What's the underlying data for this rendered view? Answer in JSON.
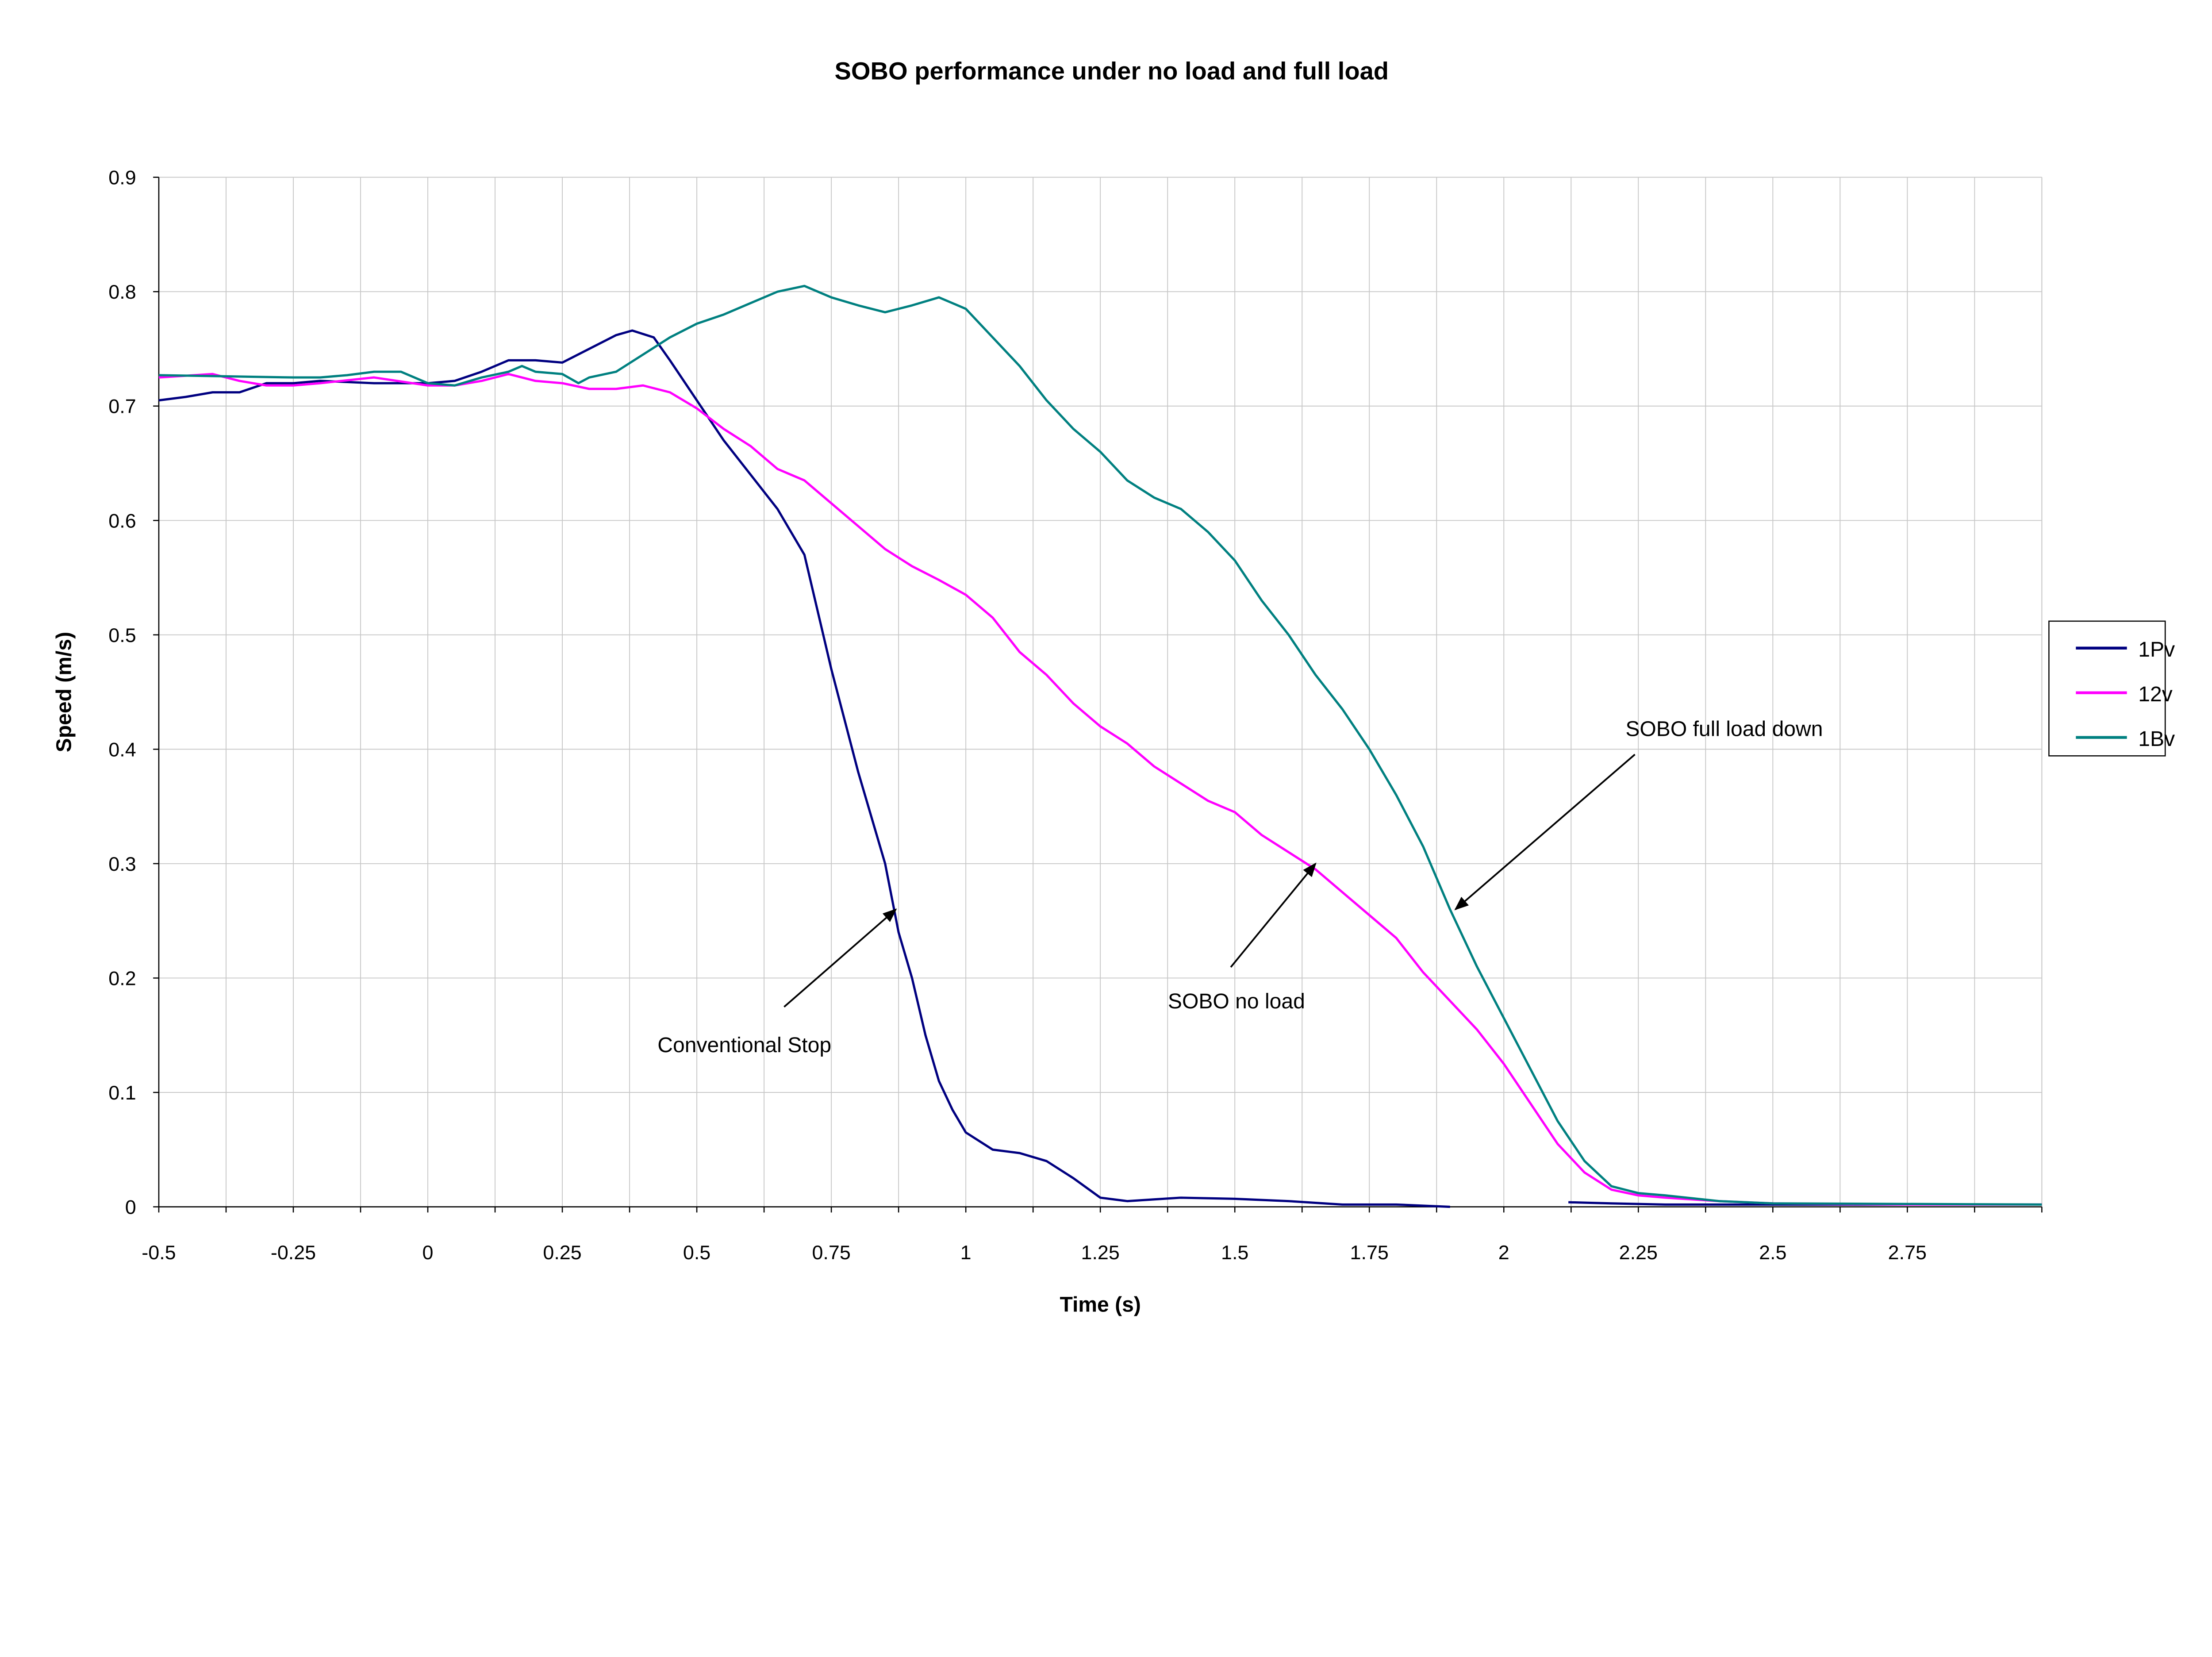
{
  "chart_data": {
    "type": "line",
    "title": "SOBO performance under no load and full load",
    "xlabel": "Time (s)",
    "ylabel": "Speed (m/s)",
    "xlim": [
      -0.5,
      3.0
    ],
    "ylim": [
      0,
      0.9
    ],
    "x_ticks": [
      "-0.5",
      "-0.25",
      "0",
      "0.25",
      "0.5",
      "0.75",
      "1",
      "1.25",
      "1.5",
      "1.75",
      "2",
      "2.25",
      "2.5",
      "2.75"
    ],
    "y_ticks": [
      "0",
      "0.1",
      "0.2",
      "0.3",
      "0.4",
      "0.5",
      "0.6",
      "0.7",
      "0.8",
      "0.9"
    ],
    "grid": true,
    "legend_position": "right",
    "series": [
      {
        "name": "1Pv",
        "color": "#000080",
        "x": [
          -0.5,
          -0.45,
          -0.4,
          -0.35,
          -0.3,
          -0.25,
          -0.2,
          -0.1,
          0,
          0.05,
          0.1,
          0.15,
          0.2,
          0.25,
          0.3,
          0.35,
          0.38,
          0.42,
          0.45,
          0.5,
          0.55,
          0.6,
          0.65,
          0.7,
          0.73,
          0.75,
          0.8,
          0.85,
          0.875,
          0.9,
          0.925,
          0.95,
          0.975,
          1.0,
          1.05,
          1.1,
          1.15,
          1.2,
          1.25,
          1.3,
          1.4,
          1.5,
          1.6,
          1.7,
          1.8,
          1.9,
          null,
          2.12,
          2.2,
          2.3,
          2.5,
          2.75,
          3.0
        ],
        "y": [
          0.705,
          0.708,
          0.712,
          0.712,
          0.72,
          0.72,
          0.722,
          0.72,
          0.72,
          0.722,
          0.73,
          0.74,
          0.74,
          0.738,
          0.75,
          0.762,
          0.766,
          0.76,
          0.74,
          0.705,
          0.67,
          0.64,
          0.61,
          0.57,
          0.51,
          0.47,
          0.38,
          0.3,
          0.24,
          0.2,
          0.15,
          0.11,
          0.085,
          0.065,
          0.05,
          0.047,
          0.04,
          0.025,
          0.008,
          0.005,
          0.008,
          0.007,
          0.005,
          0.002,
          0.002,
          0.0,
          null,
          0.004,
          0.003,
          0.002,
          0.002,
          0.002,
          0.002
        ]
      },
      {
        "name": "12v",
        "color": "#FF00FF",
        "x": [
          -0.5,
          -0.4,
          -0.35,
          -0.3,
          -0.25,
          -0.2,
          -0.1,
          0,
          0.05,
          0.1,
          0.15,
          0.2,
          0.25,
          0.3,
          0.35,
          0.4,
          0.45,
          0.5,
          0.55,
          0.6,
          0.65,
          0.7,
          0.75,
          0.8,
          0.85,
          0.9,
          0.95,
          1.0,
          1.05,
          1.1,
          1.15,
          1.2,
          1.25,
          1.3,
          1.35,
          1.4,
          1.45,
          1.5,
          1.55,
          1.6,
          1.65,
          1.7,
          1.75,
          1.8,
          1.85,
          1.9,
          1.95,
          2.0,
          2.05,
          2.1,
          2.15,
          2.2,
          2.25,
          2.3,
          2.4,
          2.5,
          2.75,
          3.0
        ],
        "y": [
          0.725,
          0.728,
          0.722,
          0.718,
          0.718,
          0.72,
          0.725,
          0.718,
          0.718,
          0.722,
          0.728,
          0.722,
          0.72,
          0.715,
          0.715,
          0.718,
          0.712,
          0.698,
          0.68,
          0.665,
          0.645,
          0.635,
          0.615,
          0.595,
          0.575,
          0.56,
          0.548,
          0.535,
          0.515,
          0.485,
          0.465,
          0.44,
          0.42,
          0.405,
          0.385,
          0.37,
          0.355,
          0.345,
          0.325,
          0.31,
          0.295,
          0.275,
          0.255,
          0.235,
          0.205,
          0.18,
          0.155,
          0.125,
          0.09,
          0.055,
          0.03,
          0.015,
          0.01,
          0.008,
          0.005,
          0.003,
          0.002,
          0.002
        ]
      },
      {
        "name": "1Bv",
        "color": "#008080",
        "x": [
          -0.5,
          -0.25,
          -0.2,
          -0.15,
          -0.1,
          -0.05,
          0,
          0.05,
          0.1,
          0.15,
          0.175,
          0.2,
          0.25,
          0.28,
          0.3,
          0.35,
          0.4,
          0.45,
          0.5,
          0.55,
          0.6,
          0.65,
          0.7,
          0.75,
          0.8,
          0.85,
          0.9,
          0.95,
          1.0,
          1.05,
          1.1,
          1.15,
          1.2,
          1.25,
          1.3,
          1.35,
          1.4,
          1.45,
          1.5,
          1.55,
          1.6,
          1.65,
          1.7,
          1.75,
          1.8,
          1.85,
          1.9,
          1.95,
          2.0,
          2.05,
          2.1,
          2.15,
          2.2,
          2.25,
          2.3,
          2.4,
          2.5,
          3.0
        ],
        "y": [
          0.727,
          0.725,
          0.725,
          0.727,
          0.73,
          0.73,
          0.72,
          0.718,
          0.725,
          0.73,
          0.735,
          0.73,
          0.728,
          0.72,
          0.725,
          0.73,
          0.745,
          0.76,
          0.772,
          0.78,
          0.79,
          0.8,
          0.805,
          0.795,
          0.788,
          0.782,
          0.788,
          0.795,
          0.785,
          0.76,
          0.735,
          0.705,
          0.68,
          0.66,
          0.635,
          0.62,
          0.61,
          0.59,
          0.565,
          0.53,
          0.5,
          0.465,
          0.435,
          0.4,
          0.36,
          0.315,
          0.26,
          0.21,
          0.165,
          0.12,
          0.075,
          0.04,
          0.018,
          0.012,
          0.01,
          0.005,
          0.003,
          0.002
        ]
      }
    ],
    "annotations": [
      {
        "text": "Conventional Stop",
        "arrow_to": [
          0.87,
          0.26
        ]
      },
      {
        "text": "SOBO no load",
        "arrow_to": [
          1.65,
          0.3
        ]
      },
      {
        "text": "SOBO full load down",
        "arrow_to": [
          1.91,
          0.26
        ]
      }
    ]
  }
}
